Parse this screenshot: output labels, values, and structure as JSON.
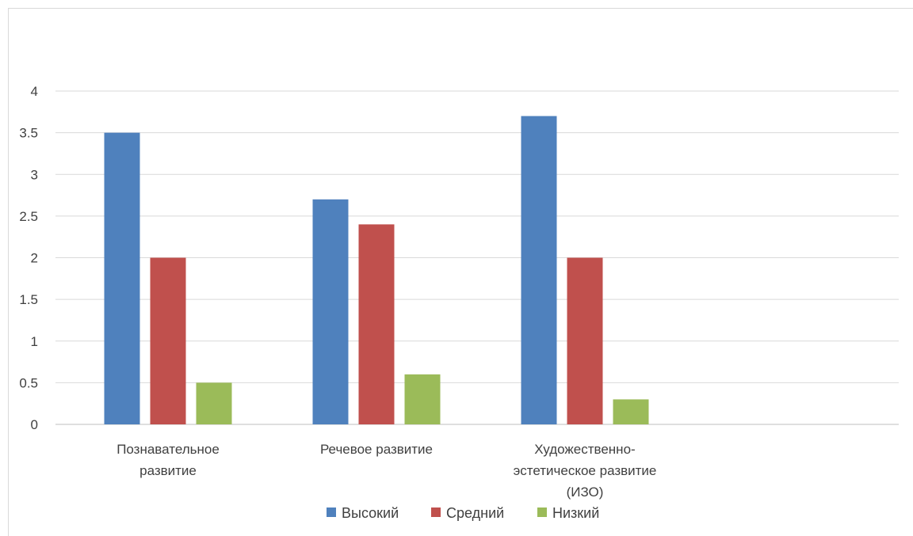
{
  "chart_data": {
    "type": "bar",
    "categories": [
      [
        "Познавательное",
        "развитие"
      ],
      [
        "Речевое развитие"
      ],
      [
        "Художественно-",
        "эстетическое развитие",
        "(ИЗО)"
      ]
    ],
    "series": [
      {
        "name": "Высокий",
        "color": "#4f81bd",
        "values": [
          3.5,
          2.7,
          3.7
        ]
      },
      {
        "name": "Средний",
        "color": "#c0504d",
        "values": [
          2.0,
          2.4,
          2.0
        ]
      },
      {
        "name": "Низкий",
        "color": "#9bbb59",
        "values": [
          0.5,
          0.6,
          0.3
        ]
      }
    ],
    "ylim": [
      0,
      4
    ],
    "yticks": [
      "0",
      "0.5",
      "1",
      "1.5",
      "2",
      "2.5",
      "3",
      "3.5",
      "4"
    ],
    "ytick_values": [
      0,
      0.5,
      1,
      1.5,
      2,
      2.5,
      3,
      3.5,
      4
    ],
    "grid": true,
    "legend_position": "bottom"
  }
}
